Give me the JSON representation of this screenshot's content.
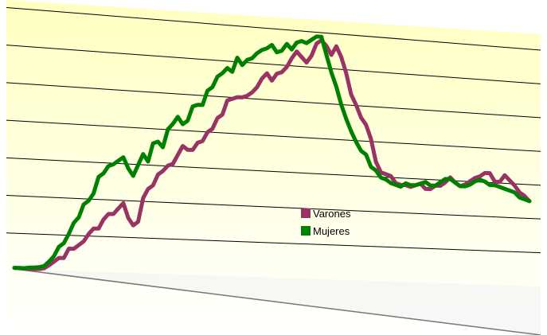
{
  "chart_data": {
    "type": "line",
    "title": "",
    "xlabel": "",
    "ylabel": "",
    "ylim": [
      0,
      7
    ],
    "grid": true,
    "legend_position": "center-right",
    "colors": {
      "varones": "#993366",
      "mujeres": "#008000",
      "gridline": "#000000",
      "plot_top": "#ffffc0",
      "plot_bottom": "#ffffff"
    },
    "series": [
      {
        "name": "Varones",
        "color": "#993366",
        "values": [
          0.03,
          0.02,
          0.01,
          0.0,
          0.0,
          0.0,
          0.02,
          0.1,
          0.2,
          0.3,
          0.3,
          0.55,
          0.55,
          0.65,
          0.75,
          0.95,
          1.1,
          1.1,
          1.35,
          1.5,
          1.5,
          1.65,
          1.8,
          1.4,
          1.2,
          1.3,
          1.95,
          2.2,
          2.3,
          2.6,
          2.7,
          2.85,
          2.9,
          3.15,
          3.4,
          3.3,
          3.3,
          3.5,
          3.55,
          3.8,
          3.9,
          4.2,
          4.3,
          4.7,
          4.75,
          4.8,
          4.8,
          4.85,
          4.95,
          5.1,
          5.35,
          5.5,
          5.3,
          5.5,
          5.55,
          5.7,
          5.95,
          6.15,
          6.0,
          5.85,
          6.05,
          6.4,
          6.5,
          6.35,
          6.1,
          6.35,
          6.05,
          5.6,
          5.0,
          4.7,
          4.35,
          4.15,
          3.75,
          3.1,
          2.8,
          2.75,
          2.7,
          2.5,
          2.45,
          2.45,
          2.4,
          2.45,
          2.5,
          2.35,
          2.35,
          2.45,
          2.45,
          2.55,
          2.7,
          2.55,
          2.45,
          2.5,
          2.6,
          2.7,
          2.75,
          2.85,
          2.85,
          2.6,
          2.6,
          2.8,
          2.65,
          2.5,
          2.3,
          2.2,
          2.05
        ]
      },
      {
        "name": "Mujeres",
        "color": "#008000",
        "values": [
          0.03,
          0.03,
          0.02,
          0.04,
          0.04,
          0.05,
          0.08,
          0.2,
          0.35,
          0.6,
          0.7,
          0.95,
          1.25,
          1.4,
          1.75,
          1.85,
          2.05,
          2.5,
          2.6,
          2.8,
          2.85,
          2.95,
          3.05,
          2.75,
          2.55,
          2.85,
          3.15,
          2.95,
          3.45,
          3.5,
          3.35,
          3.85,
          4.0,
          4.2,
          4.0,
          4.1,
          4.5,
          4.55,
          4.55,
          4.95,
          5.05,
          5.35,
          5.45,
          5.6,
          5.5,
          5.9,
          5.7,
          5.85,
          5.9,
          6.05,
          6.15,
          6.2,
          6.3,
          6.1,
          6.15,
          6.35,
          6.2,
          6.4,
          6.45,
          6.4,
          6.5,
          6.6,
          6.6,
          6.1,
          5.6,
          5.2,
          4.7,
          4.3,
          3.95,
          3.65,
          3.4,
          3.3,
          2.95,
          2.85,
          2.65,
          2.6,
          2.5,
          2.45,
          2.4,
          2.5,
          2.45,
          2.45,
          2.5,
          2.55,
          2.45,
          2.45,
          2.55,
          2.65,
          2.65,
          2.55,
          2.45,
          2.45,
          2.5,
          2.6,
          2.65,
          2.6,
          2.5,
          2.5,
          2.45,
          2.4,
          2.35,
          2.3,
          2.15,
          2.1,
          2.05
        ]
      }
    ]
  }
}
